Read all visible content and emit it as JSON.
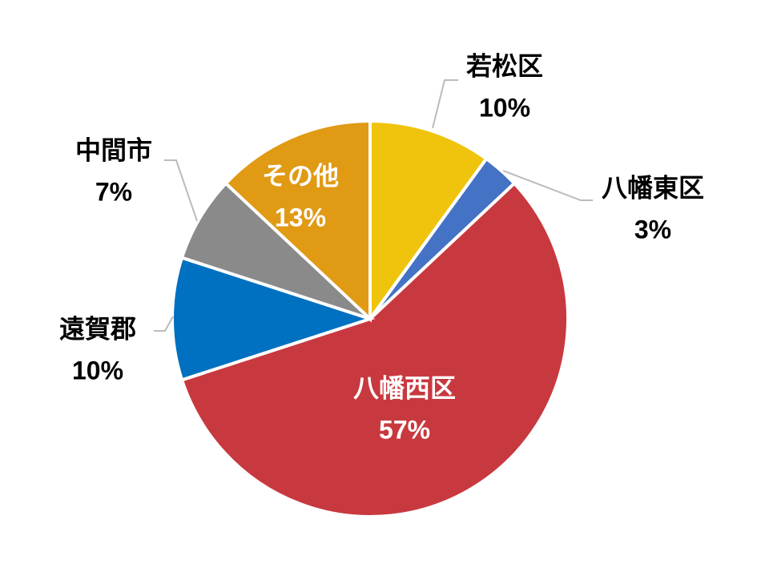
{
  "chart_data": {
    "type": "pie",
    "categories": [
      "若松区",
      "八幡東区",
      "八幡西区",
      "遠賀郡",
      "中間市",
      "その他"
    ],
    "values": [
      10,
      3,
      57,
      10,
      7,
      13
    ],
    "value_labels": [
      "10%",
      "3%",
      "57%",
      "10%",
      "7%",
      "13%"
    ],
    "colors": [
      "#f0c40c",
      "#4472c4",
      "#c8393f",
      "#0070c0",
      "#8a8a8a",
      "#e09a14"
    ]
  }
}
